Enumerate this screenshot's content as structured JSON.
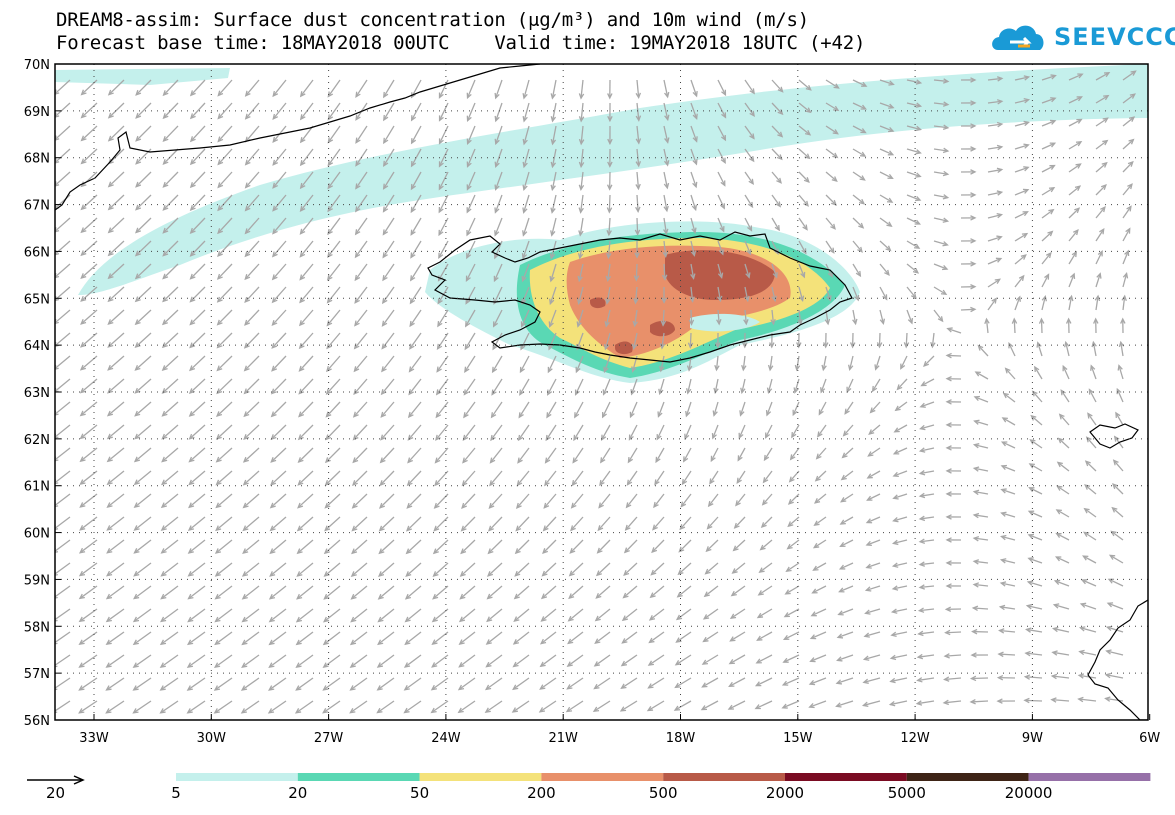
{
  "title": {
    "line1": "DREAM8-assim: Surface dust concentration (μg/m³) and 10m wind (m/s)",
    "line2": "Forecast base time: 18MAY2018 00UTC    Valid time: 19MAY2018 18UTC (+42)"
  },
  "logo": {
    "text": "SEEVCCC",
    "icon": "cloud-logo-icon",
    "color": "#1a9ad6"
  },
  "axes": {
    "lat_labels": [
      "70N",
      "69N",
      "68N",
      "67N",
      "66N",
      "65N",
      "64N",
      "63N",
      "62N",
      "61N",
      "60N",
      "59N",
      "58N",
      "57N",
      "56N"
    ],
    "lon_labels": [
      "33W",
      "30W",
      "27W",
      "24W",
      "21W",
      "18W",
      "15W",
      "12W",
      "9W",
      "6W"
    ]
  },
  "wind_reference": {
    "value_label": "20"
  },
  "legend": {
    "levels": [
      "5",
      "20",
      "50",
      "200",
      "500",
      "2000",
      "5000",
      "20000"
    ],
    "colors": [
      "#c4f0ec",
      "#5ad8b4",
      "#f4e27a",
      "#e8906a",
      "#b85a48",
      "#7a0b22",
      "#3e2416",
      "#9670a8"
    ]
  },
  "colors": {
    "coast": "#000000",
    "wind_arrow": "#a8a8a8",
    "grid": "#555555"
  }
}
